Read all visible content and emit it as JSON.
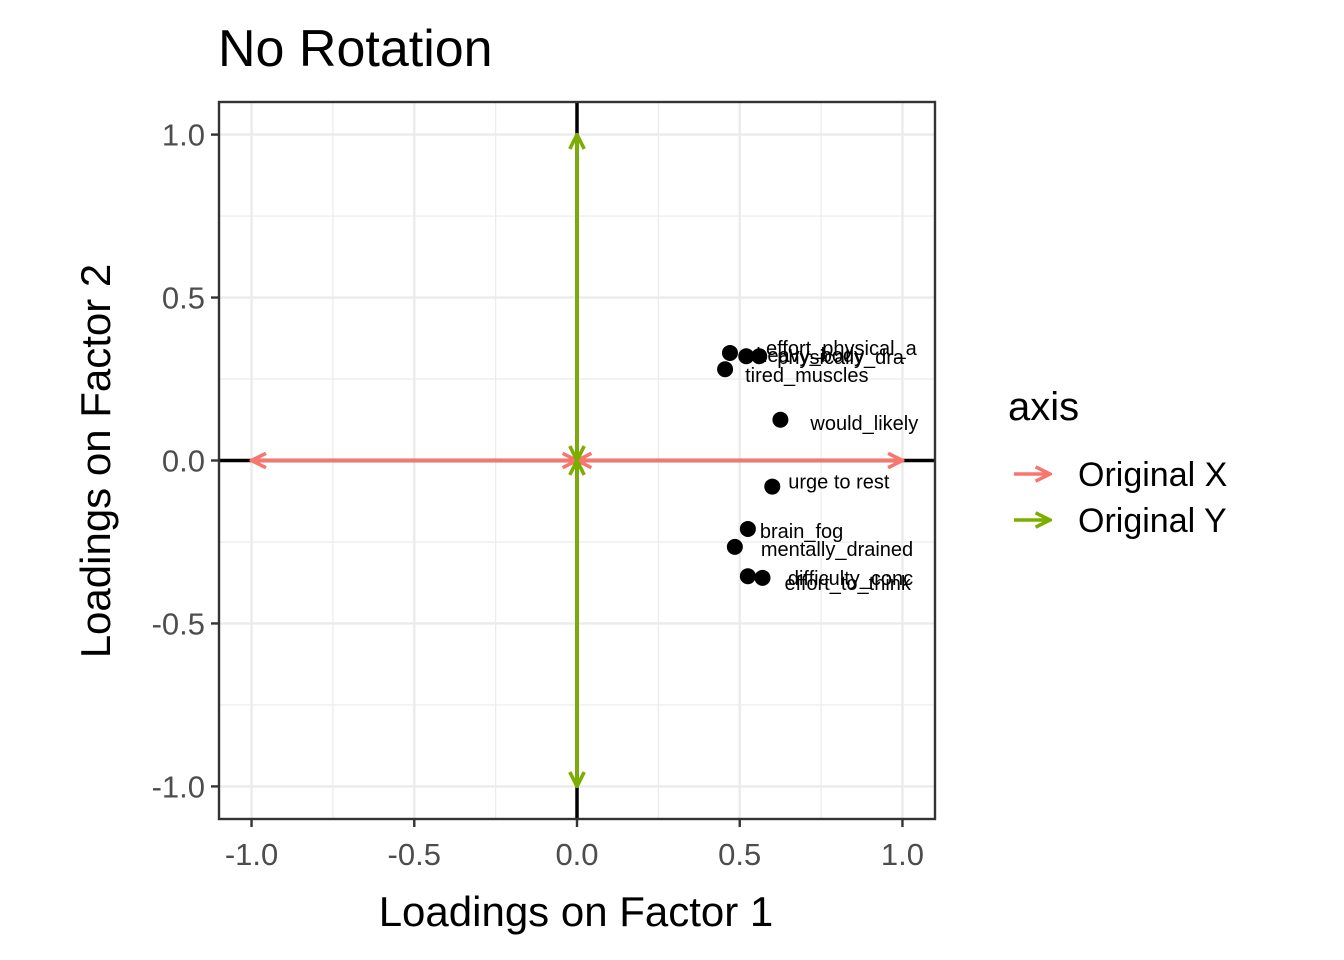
{
  "chart_data": {
    "type": "scatter",
    "title": "No Rotation",
    "xlabel": "Loadings on Factor 1",
    "ylabel": "Loadings on Factor 2",
    "xlim": [
      -1.1,
      1.1
    ],
    "ylim": [
      -1.1,
      1.1
    ],
    "x_ticks": [
      -1.0,
      -0.5,
      0.0,
      0.5,
      1.0
    ],
    "y_ticks": [
      -1.0,
      -0.5,
      0.0,
      0.5,
      1.0
    ],
    "x_tick_labels": [
      "-1.0",
      "-0.5",
      "0.0",
      "0.5",
      "1.0"
    ],
    "y_tick_labels": [
      "-1.0",
      "-0.5",
      "0.0",
      "0.5",
      "1.0"
    ],
    "grid": true,
    "point_color": "#000000",
    "points": [
      {
        "label": "effort_physical_a",
        "x": 0.47,
        "y": 0.33
      },
      {
        "label": "heavy_body",
        "x": 0.52,
        "y": 0.32
      },
      {
        "label": "physically_dra",
        "x": 0.56,
        "y": 0.32
      },
      {
        "label": "tired_muscles",
        "x": 0.455,
        "y": 0.28
      },
      {
        "label": "would_likely",
        "x": 0.625,
        "y": 0.125
      },
      {
        "label": "urge to rest",
        "x": 0.6,
        "y": -0.08
      },
      {
        "label": "brain_fog",
        "x": 0.525,
        "y": -0.21
      },
      {
        "label": "mentally_drained",
        "x": 0.485,
        "y": -0.265
      },
      {
        "label": "difficulty_conc",
        "x": 0.525,
        "y": -0.355
      },
      {
        "label": "effort_to_think",
        "x": 0.57,
        "y": -0.36
      }
    ],
    "point_label_texts": [
      "effort_physical_a",
      "heavy_body",
      "physically_dra",
      "tired_muscles",
      "would_likely",
      "urge to rest",
      "brain_fog",
      "mentally_drained",
      "difficulty_conc",
      "effort_to_think"
    ],
    "arrows": [
      {
        "series": "Original X",
        "color": "#F8766D",
        "segments": [
          [
            0,
            0,
            1,
            0
          ],
          [
            0,
            0,
            -1,
            0
          ]
        ]
      },
      {
        "series": "Original Y",
        "color": "#7CAE00",
        "segments": [
          [
            0,
            0,
            0,
            1
          ],
          [
            0,
            0,
            0,
            -1
          ]
        ]
      }
    ],
    "legend": {
      "title": "axis",
      "position": "right",
      "items": [
        {
          "label": "Original X",
          "color": "#F8766D"
        },
        {
          "label": "Original Y",
          "color": "#7CAE00"
        }
      ]
    }
  }
}
